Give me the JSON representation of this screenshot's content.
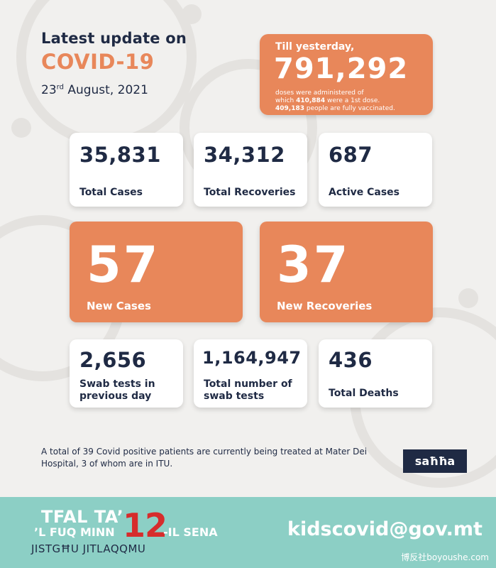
{
  "header": {
    "line1": "Latest update on",
    "line2": "COVID-19",
    "date_day": "23",
    "date_suffix": "rd",
    "date_rest": " August, 2021"
  },
  "vaccination": {
    "heading": "Till yesterday,",
    "doses": "791,292",
    "line1": "doses were administered of",
    "line2_pre": "which ",
    "first_dose": "410,884",
    "line2_post": " were a 1st dose.",
    "fully": "409,183",
    "line3_post": " people are fully vaccinated."
  },
  "stats_row1": [
    {
      "value": "35,831",
      "label": "Total Cases"
    },
    {
      "value": "34,312",
      "label": "Total Recoveries"
    },
    {
      "value": "687",
      "label": "Active Cases"
    }
  ],
  "highlight": [
    {
      "value": "57",
      "label": "New Cases"
    },
    {
      "value": "37",
      "label": "New Recoveries"
    }
  ],
  "stats_row3": [
    {
      "value": "2,656",
      "label": "Swab tests in previous day"
    },
    {
      "value": "1,164,947",
      "label": "Total number of swab tests"
    },
    {
      "value": "436",
      "label": "Total Deaths"
    }
  ],
  "note": "A total of 39 Covid positive patients are currently being treated at Mater Dei Hospital, 3 of whom are in ITU.",
  "logo": "saħħa",
  "footer": {
    "line1": "TFAL TA’",
    "line2": "’L FUQ MINN",
    "number": "12",
    "line3": "-IL SENA",
    "line4": "JISTGĦU JITLAQQMU",
    "email": "kidscovid@gov.mt",
    "watermark": "博反社boyoushe.com"
  },
  "colors": {
    "accent": "#e8875a",
    "navy": "#1f2a44",
    "teal": "#8ccfc5",
    "red": "#d62c2c"
  }
}
